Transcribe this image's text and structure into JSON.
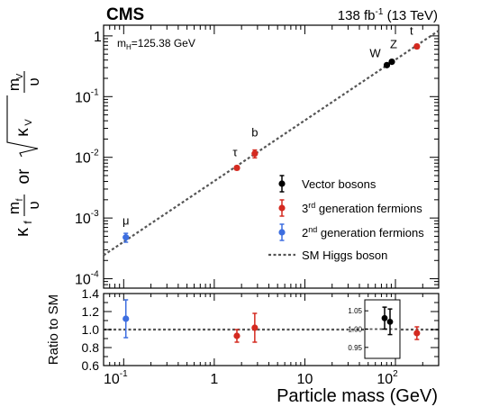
{
  "header": {
    "experiment": "CMS",
    "lumi_value": "138 fb",
    "lumi_exp": "-1",
    "lumi_energy": " (13 TeV)"
  },
  "annotation": {
    "mass_base": "m",
    "mass_sub": "H",
    "mass_value": "=125.38 GeV"
  },
  "chart_data": {
    "type": "scatter",
    "title": "",
    "xlabel": "Particle mass (GeV)",
    "x_scale": "log",
    "xlim": [
      0.06,
      300
    ],
    "x_ticks": [
      {
        "value": 0.1,
        "label": "10",
        "exp": "-1"
      },
      {
        "value": 1,
        "label": "1",
        "exp": ""
      },
      {
        "value": 10,
        "label": "10",
        "exp": ""
      },
      {
        "value": 100,
        "label": "10",
        "exp": "2"
      }
    ],
    "top_panel": {
      "ylabel_parts": [
        "κ",
        "f",
        "m",
        "f",
        "υ",
        "or",
        "κ",
        "V",
        "m",
        "V",
        "υ"
      ],
      "y_scale": "log",
      "ylim": [
        7e-05,
        1.5
      ],
      "y_ticks": [
        {
          "value": 0.0001,
          "label": "10",
          "exp": "-4"
        },
        {
          "value": 0.001,
          "label": "10",
          "exp": "-3"
        },
        {
          "value": 0.01,
          "label": "10",
          "exp": "-2"
        },
        {
          "value": 0.1,
          "label": "10",
          "exp": "-1"
        },
        {
          "value": 1,
          "label": "1",
          "exp": ""
        }
      ],
      "reference_line": {
        "name": "SM Higgs boson",
        "formula": "y = x / 246.22",
        "color": "#555555"
      },
      "series": [
        {
          "name": "Vector bosons",
          "color": "#000000",
          "points": [
            {
              "label": "W",
              "x": 80.4,
              "y": 0.33,
              "err": 0.01
            },
            {
              "label": "Z",
              "x": 91.2,
              "y": 0.375,
              "err": 0.01
            }
          ]
        },
        {
          "name_prefix": "3",
          "name_sup": "rd",
          "name_suffix": " generation fermions",
          "color": "#d42a20",
          "points": [
            {
              "label": "τ",
              "x": 1.777,
              "y": 0.0067,
              "err": 0.0005
            },
            {
              "label": "b",
              "x": 2.8,
              "y": 0.0115,
              "err": 0.0017
            },
            {
              "label": "t",
              "x": 172.5,
              "y": 0.67,
              "err": 0.05
            }
          ]
        },
        {
          "name_prefix": "2",
          "name_sup": "nd",
          "name_suffix": " generation fermions",
          "color": "#3d6ee0",
          "points": [
            {
              "label": "μ",
              "x": 0.1057,
              "y": 0.00048,
              "err": 8e-05
            }
          ]
        }
      ],
      "legend_position": "center-right"
    },
    "ratio_panel": {
      "ylabel": "Ratio to SM",
      "ylim": [
        0.6,
        1.4
      ],
      "y_ticks": [
        "0.6",
        "0.8",
        "1.0",
        "1.2",
        "1.4"
      ],
      "points": [
        {
          "x": 0.1057,
          "y": 1.12,
          "err": 0.21,
          "color": "#3d6ee0"
        },
        {
          "x": 1.777,
          "y": 0.93,
          "err": 0.07,
          "color": "#d42a20"
        },
        {
          "x": 2.8,
          "y": 1.02,
          "err": 0.16,
          "color": "#d42a20"
        },
        {
          "x": 172.5,
          "y": 0.96,
          "err": 0.07,
          "color": "#d42a20"
        }
      ],
      "inset": {
        "ylim": [
          0.92,
          1.08
        ],
        "y_ticks": [
          "0.95",
          "1.00",
          "1.05"
        ],
        "points": [
          {
            "name": "W",
            "y": 1.03,
            "err": 0.03,
            "color": "#000000"
          },
          {
            "name": "Z",
            "y": 1.02,
            "err": 0.035,
            "color": "#000000"
          }
        ]
      }
    }
  }
}
